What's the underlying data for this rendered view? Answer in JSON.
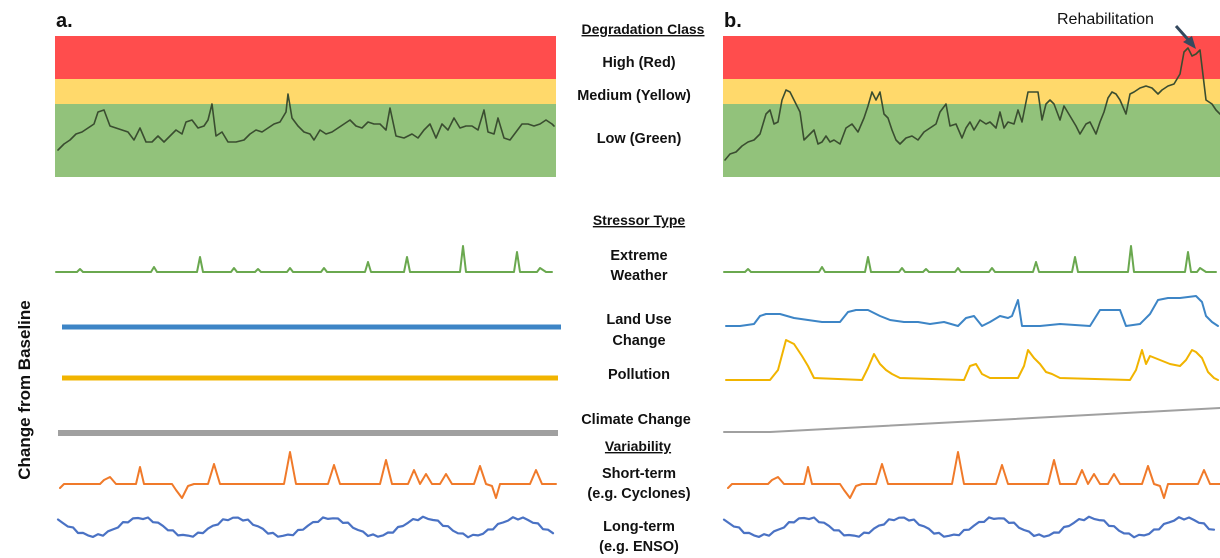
{
  "panels": {
    "a": {
      "label": "a."
    },
    "b": {
      "label": "b."
    }
  },
  "y_axis_label": "Change from Baseline",
  "annotation": "Rehabilitation",
  "degradation": {
    "heading": "Degradation Class",
    "classes": [
      {
        "label": "High (Red)",
        "color": "#ff4d4d"
      },
      {
        "label": "Medium (Yellow)",
        "color": "#ffd96b"
      },
      {
        "label": "Low (Green)",
        "color": "#92c27b"
      }
    ],
    "line_color": "#3a4d30"
  },
  "stressors": {
    "heading": "Stressor Type",
    "items": [
      {
        "key": "extreme_weather",
        "lines": [
          "Extreme",
          "Weather"
        ],
        "color": "#6aa84f"
      },
      {
        "key": "land_use",
        "lines": [
          "Land Use",
          "Change"
        ],
        "color": "#3d85c6"
      },
      {
        "key": "pollution",
        "lines": [
          "Pollution"
        ],
        "color": "#f1b400"
      },
      {
        "key": "climate",
        "lines": [
          "Climate Change"
        ],
        "color": "#a0a0a0"
      }
    ]
  },
  "variability": {
    "heading": "Variability",
    "items": [
      {
        "key": "short_term",
        "lines": [
          "Short-term",
          "(e.g. Cyclones)"
        ],
        "color": "#f07a2a"
      },
      {
        "key": "long_term",
        "lines": [
          "Long-term",
          "(e.g. ENSO)"
        ],
        "color": "#4a72c4"
      }
    ]
  }
}
